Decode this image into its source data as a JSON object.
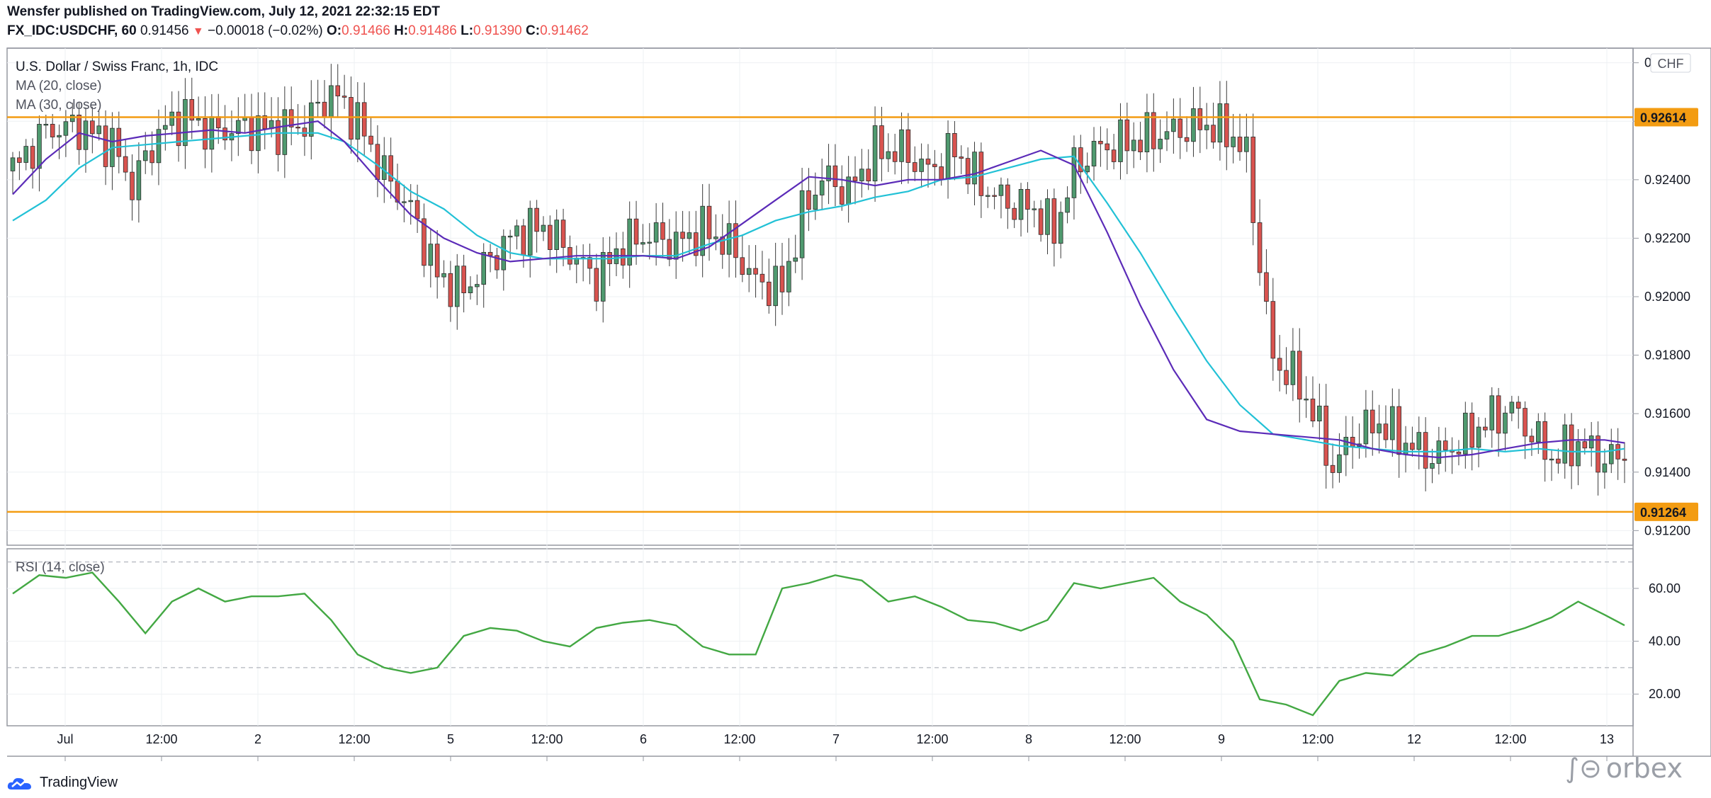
{
  "header": {
    "line1": "Wensfer published on TradingView.com, July 12, 2021 22:32:15 EDT",
    "symbol": "FX_IDC:USDCHF, 60",
    "last": "0.91456",
    "change": "−0.00018 (−0.02%)",
    "open_label": "O:",
    "open": "0.91466",
    "high_label": "H:",
    "high": "0.91486",
    "low_label": "L:",
    "low": "0.91390",
    "close_label": "C:",
    "close": "0.91462"
  },
  "footer": {
    "brand": "TradingView",
    "watermark": "orbex"
  },
  "colors": {
    "up": "#26a69a",
    "up_fill": "#4f9a6f",
    "down": "#d9534f",
    "ma20": "#5b2bb8",
    "ma30": "#22c1d6",
    "level": "#f39c12",
    "rsi": "#43a843",
    "grid": "#eef0f3",
    "border": "#9598a1"
  },
  "chart_data": [
    {
      "type": "candlestick",
      "title": "U.S. Dollar / Swiss Franc, 1h, IDC",
      "legend": [
        "MA (20, close)",
        "MA (30, close)"
      ],
      "currency": "CHF",
      "ylim": [
        0.9115,
        0.9285
      ],
      "y_ticks": [
        "0.92800",
        "0.92600",
        "0.92400",
        "0.92200",
        "0.92000",
        "0.91800",
        "0.91600",
        "0.91400",
        "0.91200"
      ],
      "y_tick_values": [
        0.928,
        0.926,
        0.924,
        0.922,
        0.92,
        0.918,
        0.916,
        0.914,
        0.912
      ],
      "x_ticks": [
        "Jul",
        "12:00",
        "2",
        "12:00",
        "5",
        "12:00",
        "6",
        "12:00",
        "7",
        "12:00",
        "8",
        "12:00",
        "9",
        "12:00",
        "12",
        "12:00",
        "13"
      ],
      "levels": [
        {
          "label": "0.92614",
          "value": 0.92614
        },
        {
          "label": "0.91264",
          "value": 0.91264
        }
      ],
      "ma_20": [
        [
          0,
          0.9235
        ],
        [
          5,
          0.9247
        ],
        [
          10,
          0.9256
        ],
        [
          15,
          0.9253
        ],
        [
          20,
          0.9255
        ],
        [
          25,
          0.9256
        ],
        [
          30,
          0.9257
        ],
        [
          35,
          0.9256
        ],
        [
          40,
          0.9258
        ],
        [
          46,
          0.926
        ],
        [
          50,
          0.9253
        ],
        [
          55,
          0.924
        ],
        [
          60,
          0.9228
        ],
        [
          65,
          0.922
        ],
        [
          70,
          0.9215
        ],
        [
          75,
          0.9212
        ],
        [
          80,
          0.9213
        ],
        [
          85,
          0.9214
        ],
        [
          90,
          0.9214
        ],
        [
          95,
          0.9214
        ],
        [
          100,
          0.9213
        ],
        [
          105,
          0.9217
        ],
        [
          110,
          0.9225
        ],
        [
          115,
          0.9233
        ],
        [
          120,
          0.9241
        ],
        [
          125,
          0.924
        ],
        [
          130,
          0.9238
        ],
        [
          135,
          0.924
        ],
        [
          140,
          0.924
        ],
        [
          145,
          0.9242
        ],
        [
          150,
          0.9246
        ],
        [
          155,
          0.925
        ],
        [
          160,
          0.9245
        ],
        [
          165,
          0.9222
        ],
        [
          170,
          0.9197
        ],
        [
          175,
          0.9175
        ],
        [
          180,
          0.9158
        ],
        [
          185,
          0.9154
        ],
        [
          190,
          0.9153
        ],
        [
          195,
          0.9152
        ],
        [
          200,
          0.9151
        ],
        [
          205,
          0.9148
        ],
        [
          210,
          0.9146
        ],
        [
          215,
          0.9145
        ],
        [
          220,
          0.9146
        ],
        [
          225,
          0.9148
        ],
        [
          230,
          0.915
        ],
        [
          235,
          0.9151
        ],
        [
          240,
          0.9151
        ],
        [
          243,
          0.915
        ]
      ],
      "ma_30": [
        [
          0,
          0.9226
        ],
        [
          5,
          0.9233
        ],
        [
          10,
          0.9244
        ],
        [
          15,
          0.9251
        ],
        [
          20,
          0.9252
        ],
        [
          25,
          0.9253
        ],
        [
          30,
          0.9254
        ],
        [
          35,
          0.9255
        ],
        [
          40,
          0.9256
        ],
        [
          46,
          0.9256
        ],
        [
          50,
          0.9253
        ],
        [
          55,
          0.9245
        ],
        [
          60,
          0.9236
        ],
        [
          65,
          0.923
        ],
        [
          70,
          0.9221
        ],
        [
          75,
          0.9215
        ],
        [
          80,
          0.9213
        ],
        [
          85,
          0.9213
        ],
        [
          90,
          0.9213
        ],
        [
          95,
          0.9214
        ],
        [
          100,
          0.9214
        ],
        [
          105,
          0.9218
        ],
        [
          110,
          0.9221
        ],
        [
          115,
          0.9226
        ],
        [
          120,
          0.9229
        ],
        [
          125,
          0.9231
        ],
        [
          130,
          0.9234
        ],
        [
          135,
          0.9236
        ],
        [
          140,
          0.924
        ],
        [
          145,
          0.9241
        ],
        [
          150,
          0.9244
        ],
        [
          155,
          0.9247
        ],
        [
          160,
          0.9248
        ],
        [
          165,
          0.9232
        ],
        [
          170,
          0.9215
        ],
        [
          175,
          0.9196
        ],
        [
          180,
          0.9178
        ],
        [
          185,
          0.9163
        ],
        [
          190,
          0.9153
        ],
        [
          195,
          0.9151
        ],
        [
          200,
          0.9149
        ],
        [
          205,
          0.9148
        ],
        [
          210,
          0.9147
        ],
        [
          215,
          0.9147
        ],
        [
          220,
          0.9148
        ],
        [
          225,
          0.9147
        ],
        [
          230,
          0.9148
        ],
        [
          235,
          0.9147
        ],
        [
          240,
          0.9147
        ],
        [
          243,
          0.9148
        ]
      ],
      "close_path": [
        [
          0,
          0.9243
        ],
        [
          5,
          0.9257
        ],
        [
          10,
          0.9258
        ],
        [
          15,
          0.9252
        ],
        [
          18,
          0.9238
        ],
        [
          22,
          0.9256
        ],
        [
          26,
          0.9262
        ],
        [
          30,
          0.9256
        ],
        [
          35,
          0.9258
        ],
        [
          40,
          0.9257
        ],
        [
          44,
          0.9259
        ],
        [
          48,
          0.927
        ],
        [
          52,
          0.926
        ],
        [
          56,
          0.9242
        ],
        [
          60,
          0.923
        ],
        [
          64,
          0.9207
        ],
        [
          68,
          0.9202
        ],
        [
          72,
          0.9213
        ],
        [
          76,
          0.9222
        ],
        [
          80,
          0.9224
        ],
        [
          84,
          0.9215
        ],
        [
          88,
          0.9206
        ],
        [
          92,
          0.9218
        ],
        [
          96,
          0.9221
        ],
        [
          100,
          0.9218
        ],
        [
          104,
          0.9223
        ],
        [
          108,
          0.9218
        ],
        [
          112,
          0.9205
        ],
        [
          116,
          0.9203
        ],
        [
          119,
          0.9228
        ],
        [
          122,
          0.9241
        ],
        [
          126,
          0.9236
        ],
        [
          130,
          0.925
        ],
        [
          134,
          0.925
        ],
        [
          138,
          0.9243
        ],
        [
          142,
          0.925
        ],
        [
          146,
          0.9238
        ],
        [
          150,
          0.9232
        ],
        [
          154,
          0.923
        ],
        [
          157,
          0.9222
        ],
        [
          160,
          0.9244
        ],
        [
          163,
          0.925
        ],
        [
          168,
          0.9253
        ],
        [
          172,
          0.9255
        ],
        [
          176,
          0.9257
        ],
        [
          180,
          0.9259
        ],
        [
          184,
          0.9255
        ],
        [
          186,
          0.9248
        ],
        [
          188,
          0.9211
        ],
        [
          190,
          0.9178
        ],
        [
          193,
          0.9173
        ],
        [
          196,
          0.9161
        ],
        [
          199,
          0.9141
        ],
        [
          202,
          0.9152
        ],
        [
          206,
          0.9157
        ],
        [
          210,
          0.915
        ],
        [
          214,
          0.9145
        ],
        [
          218,
          0.915
        ],
        [
          222,
          0.9157
        ],
        [
          226,
          0.9162
        ],
        [
          229,
          0.9153
        ],
        [
          232,
          0.9145
        ],
        [
          236,
          0.915
        ],
        [
          240,
          0.9144
        ],
        [
          243,
          0.9146
        ]
      ]
    },
    {
      "type": "line",
      "title": "RSI (14, close)",
      "ylim": [
        8,
        75
      ],
      "y_ticks": [
        "60.00",
        "40.00",
        "20.00"
      ],
      "y_tick_values": [
        60,
        40,
        20
      ],
      "bands": [
        70,
        30
      ],
      "x": [
        0,
        4,
        8,
        12,
        16,
        20,
        24,
        28,
        32,
        36,
        40,
        44,
        48,
        52,
        56,
        60,
        64,
        68,
        72,
        76,
        80,
        84,
        88,
        92,
        96,
        100,
        104,
        108,
        112,
        116,
        120,
        124,
        128,
        132,
        136,
        140,
        144,
        148,
        152,
        156,
        160,
        164,
        168,
        172,
        176,
        180,
        184,
        188,
        192,
        196,
        200,
        204,
        208,
        212,
        216,
        220,
        224,
        228,
        232,
        236,
        240,
        243
      ],
      "values": [
        58,
        65,
        64,
        66,
        55,
        43,
        55,
        60,
        55,
        57,
        57,
        58,
        48,
        35,
        30,
        28,
        30,
        42,
        45,
        44,
        40,
        38,
        45,
        47,
        48,
        46,
        38,
        35,
        35,
        60,
        62,
        65,
        63,
        55,
        57,
        53,
        48,
        47,
        44,
        48,
        62,
        60,
        62,
        64,
        55,
        50,
        40,
        18,
        16,
        12,
        25,
        28,
        27,
        35,
        38,
        42,
        42,
        45,
        49,
        55,
        50,
        46
      ]
    }
  ]
}
